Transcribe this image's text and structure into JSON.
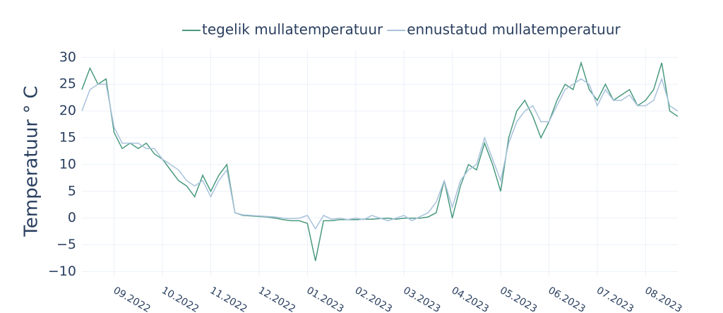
{
  "chart_data": {
    "type": "line",
    "y_label": "Temperatuur ° C",
    "x": [
      null,
      null,
      null,
      null,
      "09.2022",
      "09.2022",
      "09.2022",
      "09.2022",
      "09.2022",
      "09.2022",
      "10.2022",
      "10.2022",
      "10.2022",
      "10.2022",
      "10.2022",
      "10.2022",
      "11.2022",
      "11.2022",
      "11.2022",
      "11.2022",
      "11.2022",
      "11.2022",
      "12.2022",
      "12.2022",
      "12.2022",
      "12.2022",
      "12.2022",
      "12.2022",
      "01.2023",
      "01.2023",
      "01.2023",
      "01.2023",
      "01.2023",
      "01.2023",
      "02.2023",
      "02.2023",
      "02.2023",
      "02.2023",
      "02.2023",
      "02.2023",
      "03.2023",
      "03.2023",
      "03.2023",
      "03.2023",
      "03.2023",
      "03.2023",
      "04.2023",
      "04.2023",
      "04.2023",
      "04.2023",
      "04.2023",
      "04.2023",
      "05.2023",
      "05.2023",
      "05.2023",
      "05.2023",
      "05.2023",
      "05.2023",
      "06.2023",
      "06.2023",
      "06.2023",
      "06.2023",
      "06.2023",
      "06.2023",
      "07.2023",
      "07.2023",
      "07.2023",
      "07.2023",
      "07.2023",
      "07.2023",
      "08.2023",
      "08.2023",
      "08.2023",
      "08.2023",
      "08.2023"
    ],
    "series": [
      {
        "name": "tegelik mullatemperatuur",
        "color": "#4a9a7f",
        "values": [
          24,
          28,
          25,
          26,
          16,
          13,
          14,
          13,
          14,
          12,
          11,
          9,
          7,
          6,
          4,
          8,
          5,
          8,
          10,
          1,
          0.5,
          0.4,
          0.3,
          0.2,
          0,
          -0.3,
          -0.5,
          -0.5,
          -1,
          -8,
          -0.5,
          -0.5,
          -0.3,
          -0.3,
          -0.3,
          -0.2,
          -0.2,
          -0.1,
          0,
          -0.2,
          0,
          0,
          0,
          0.2,
          1,
          7,
          0,
          6,
          10,
          9,
          14,
          10,
          5,
          15,
          20,
          22,
          19,
          15,
          18,
          22,
          25,
          24,
          29,
          24,
          22,
          25,
          22,
          23,
          24,
          21,
          22,
          24,
          29,
          20,
          19
        ]
      },
      {
        "name": "ennustatud mullatemperatuur",
        "color": "#a9c2dd",
        "values": [
          20,
          24,
          25,
          25,
          17,
          14,
          14,
          14,
          13,
          13,
          11,
          10,
          9,
          7,
          6,
          7,
          4,
          7,
          9,
          1,
          0.6,
          0.5,
          0.4,
          0.3,
          0.2,
          0,
          -0.1,
          0,
          0.5,
          -2,
          0.5,
          -0.2,
          0,
          -0.3,
          0,
          -0.3,
          0.5,
          0,
          -0.5,
          0,
          0.5,
          -0.5,
          0.3,
          1,
          3,
          7,
          2,
          7,
          9,
          10,
          15,
          11,
          7,
          14,
          18,
          20,
          21,
          18,
          18,
          21,
          24,
          25,
          26,
          25,
          21,
          24,
          22,
          22,
          23,
          21,
          21,
          22,
          26,
          21,
          20
        ]
      }
    ],
    "ylim": [
      -11,
      31.5
    ],
    "yticks": [
      {
        "value": -10,
        "label": "−10"
      },
      {
        "value": -5,
        "label": "−5"
      },
      0,
      5,
      10,
      15,
      20,
      25,
      30
    ],
    "grid": true
  }
}
